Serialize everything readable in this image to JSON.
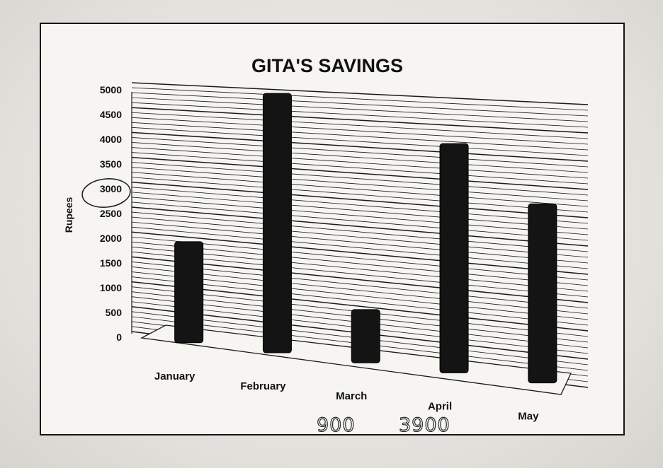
{
  "chart_data": {
    "type": "bar",
    "title": "GITA'S SAVINGS",
    "xlabel": "",
    "ylabel": "Rupees",
    "categories": [
      "January",
      "February",
      "March",
      "April",
      "May"
    ],
    "values": [
      2000,
      5000,
      1000,
      4200,
      3200
    ],
    "ylim": [
      0,
      5000
    ],
    "yticks": [
      0,
      500,
      1000,
      1500,
      2000,
      2500,
      3000,
      3500,
      4000,
      4500,
      5000
    ],
    "grid": true,
    "bar_color": "#141414",
    "annotations": {
      "circled_tick": "3000",
      "handwritten": [
        {
          "text": "900",
          "near": "March"
        },
        {
          "text": "3900",
          "near": "April"
        }
      ]
    }
  }
}
